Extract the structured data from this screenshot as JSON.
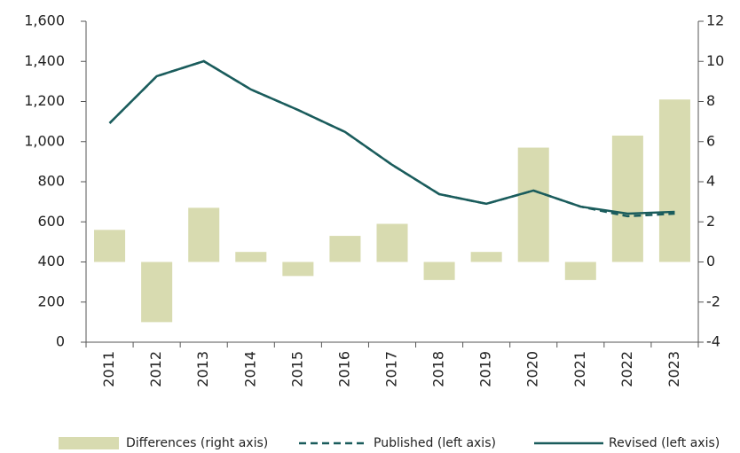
{
  "chart_data": {
    "type": "bar-line",
    "categories": [
      "2011",
      "2012",
      "2013",
      "2014",
      "2015",
      "2016",
      "2017",
      "2018",
      "2019",
      "2020",
      "2021",
      "2022",
      "2023"
    ],
    "series": [
      {
        "name": "Differences (right axis)",
        "type": "bar",
        "axis": "y2",
        "color": "#d8dbb0",
        "values": [
          1.6,
          -3.0,
          2.7,
          0.5,
          -0.7,
          1.3,
          1.9,
          -0.9,
          0.5,
          5.7,
          -0.9,
          6.3,
          8.1
        ]
      },
      {
        "name": "Published (left axis)",
        "type": "line",
        "dashed": true,
        "color": "#1a5c5c",
        "values": [
          1092,
          1326,
          1401,
          1260,
          1158,
          1048,
          884,
          738,
          690,
          756,
          676,
          628,
          641
        ]
      },
      {
        "name": "Revised (left axis)",
        "type": "line",
        "color": "#1a5c5c",
        "values": [
          1092,
          1326,
          1401,
          1260,
          1158,
          1048,
          884,
          738,
          690,
          756,
          676,
          641,
          650
        ]
      }
    ],
    "ylim": [
      0,
      1600
    ],
    "yticks": [
      0,
      200,
      400,
      600,
      800,
      {
        "value": 1000,
        "label": "1,000"
      },
      {
        "value": 1200,
        "label": "1,200"
      },
      {
        "value": 1400,
        "label": "1,400"
      },
      {
        "value": 1600,
        "label": "1,600"
      }
    ],
    "y2lim": [
      -4,
      12
    ],
    "y2ticks": [
      -4,
      -2,
      0,
      2,
      4,
      6,
      8,
      10,
      12
    ]
  }
}
